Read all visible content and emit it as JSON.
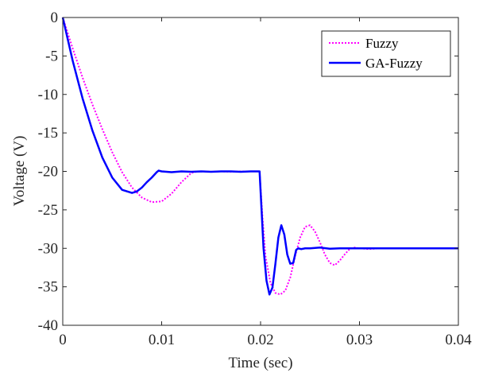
{
  "chart_data": {
    "type": "line",
    "title": "",
    "xlabel": "Time (sec)",
    "ylabel": "Voltage (V)",
    "xlim": [
      0,
      0.04
    ],
    "ylim": [
      -40,
      0
    ],
    "xticks": [
      0,
      0.01,
      0.02,
      0.03,
      0.04
    ],
    "xtick_labels": [
      "0",
      "0.01",
      "0.02",
      "0.03",
      "0.04"
    ],
    "yticks": [
      0,
      -5,
      -10,
      -15,
      -20,
      -25,
      -30,
      -35,
      -40
    ],
    "ytick_labels": [
      "0",
      "-5",
      "-10",
      "-15",
      "-20",
      "-25",
      "-30",
      "-35",
      "-40"
    ],
    "grid": false,
    "legend_position": "top-right",
    "series": [
      {
        "name": "Fuzzy",
        "color": "#ff00ff",
        "style": "dotted",
        "x": [
          0,
          0.001,
          0.002,
          0.003,
          0.004,
          0.005,
          0.006,
          0.007,
          0.008,
          0.009,
          0.01,
          0.011,
          0.012,
          0.013,
          0.0135,
          0.014,
          0.015,
          0.016,
          0.017,
          0.018,
          0.019,
          0.0199,
          0.0202,
          0.0205,
          0.021,
          0.0215,
          0.022,
          0.0225,
          0.023,
          0.0235,
          0.024,
          0.0245,
          0.025,
          0.0255,
          0.026,
          0.0265,
          0.027,
          0.0275,
          0.028,
          0.0285,
          0.029,
          0.0295,
          0.03,
          0.031,
          0.032,
          0.034,
          0.036,
          0.038,
          0.04
        ],
        "y": [
          0,
          -4,
          -7.8,
          -11.3,
          -14.5,
          -17.5,
          -20.1,
          -22.1,
          -23.4,
          -24,
          -23.9,
          -22.9,
          -21.4,
          -20.2,
          -20.05,
          -20,
          -20.05,
          -20,
          -20.05,
          -20,
          -20,
          -20,
          -26,
          -31,
          -34.5,
          -35.8,
          -36,
          -35.5,
          -33.8,
          -31,
          -28.6,
          -27.2,
          -27,
          -27.8,
          -29.2,
          -30.8,
          -31.9,
          -32.2,
          -31.6,
          -30.8,
          -30.1,
          -29.9,
          -30,
          -30.1,
          -30,
          -30,
          -30,
          -30,
          -30
        ]
      },
      {
        "name": "GA-Fuzzy",
        "color": "#0000ff",
        "style": "solid",
        "x": [
          0,
          0.001,
          0.002,
          0.003,
          0.004,
          0.005,
          0.006,
          0.007,
          0.0075,
          0.008,
          0.0085,
          0.009,
          0.0095,
          0.0097,
          0.01,
          0.011,
          0.012,
          0.013,
          0.014,
          0.015,
          0.016,
          0.017,
          0.018,
          0.019,
          0.0199,
          0.0201,
          0.0203,
          0.0206,
          0.0209,
          0.0212,
          0.0215,
          0.0218,
          0.0221,
          0.0224,
          0.0227,
          0.023,
          0.0233,
          0.0236,
          0.0238,
          0.0241,
          0.0245,
          0.025,
          0.026,
          0.027,
          0.028,
          0.029,
          0.03,
          0.032,
          0.034,
          0.036,
          0.038,
          0.04
        ],
        "y": [
          0,
          -5.6,
          -10.5,
          -14.7,
          -18.2,
          -20.8,
          -22.4,
          -22.8,
          -22.6,
          -22.1,
          -21.4,
          -20.8,
          -20.1,
          -19.9,
          -20,
          -20.1,
          -20,
          -20.05,
          -20,
          -20.05,
          -20,
          -20,
          -20.05,
          -20,
          -20,
          -25,
          -30,
          -34.2,
          -36,
          -35.1,
          -32,
          -28.6,
          -27,
          -28.2,
          -30.8,
          -32,
          -31.9,
          -30.2,
          -30,
          -30.1,
          -30,
          -30,
          -29.9,
          -30.05,
          -30,
          -30,
          -30,
          -30,
          -30,
          -30,
          -30,
          -30
        ]
      }
    ]
  }
}
